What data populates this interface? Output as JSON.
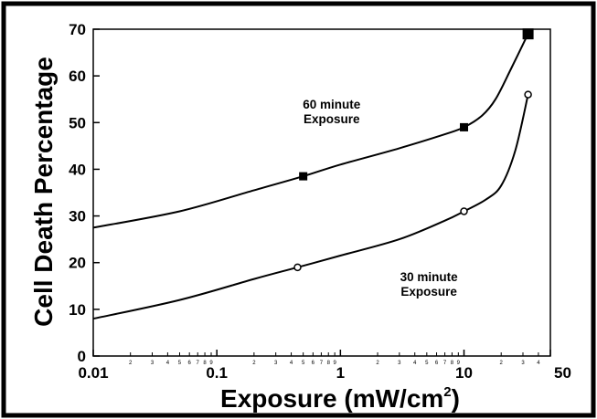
{
  "chart_data": {
    "type": "line",
    "title": "",
    "xlabel": "Exposure (mW/cm",
    "xlabel_sup": "2",
    "xlabel_close": ")",
    "ylabel": "Cell Death Percentage",
    "x_scale": "log",
    "xlim": [
      0.01,
      50
    ],
    "ylim": [
      0,
      70
    ],
    "x_ticks": [
      0.01,
      0.1,
      1,
      10,
      50
    ],
    "x_tick_labels": [
      "0.01",
      "0.1",
      "1",
      "10",
      "50"
    ],
    "y_ticks": [
      0,
      10,
      20,
      30,
      40,
      50,
      60,
      70
    ],
    "y_tick_labels": [
      "0",
      "10",
      "20",
      "30",
      "40",
      "50",
      "60",
      "70"
    ],
    "grid": false,
    "series": [
      {
        "marker": "filled-square",
        "x": [
          0.5,
          10,
          33
        ],
        "y": [
          38.5,
          49,
          69
        ],
        "curve": [
          [
            0.01,
            27.5
          ],
          [
            0.05,
            31
          ],
          [
            0.2,
            35.5
          ],
          [
            0.5,
            38.5
          ],
          [
            1,
            41
          ],
          [
            3,
            44.5
          ],
          [
            7,
            47.5
          ],
          [
            10,
            49
          ],
          [
            14,
            51.5
          ],
          [
            18,
            55
          ],
          [
            24,
            61.5
          ],
          [
            33,
            69
          ]
        ]
      },
      {
        "marker": "open-circle",
        "x": [
          0.45,
          10,
          33
        ],
        "y": [
          19,
          31,
          56
        ],
        "curve": [
          [
            0.01,
            8
          ],
          [
            0.05,
            12
          ],
          [
            0.2,
            16.5
          ],
          [
            0.45,
            19
          ],
          [
            1,
            21.5
          ],
          [
            3,
            25
          ],
          [
            7,
            29
          ],
          [
            10,
            31
          ],
          [
            15,
            33.5
          ],
          [
            20,
            36.5
          ],
          [
            26,
            44
          ],
          [
            33,
            56
          ]
        ]
      }
    ],
    "annotations": [
      {
        "lines": [
          "60 minute",
          "Exposure"
        ],
        "x": 0.85,
        "y": 53
      },
      {
        "lines": [
          "30 minute",
          "Exposure"
        ],
        "x": 5.2,
        "y": 16
      }
    ],
    "minor_tick_labels": [
      {
        "decade": 0.01,
        "labels": [
          "2",
          "3",
          "4",
          "5",
          "6",
          "7",
          "8",
          "9"
        ]
      },
      {
        "decade": 0.1,
        "labels": [
          "2",
          "3",
          "4",
          "5",
          "6",
          "7",
          "8",
          "9"
        ]
      },
      {
        "decade": 1,
        "labels": [
          "2",
          "3",
          "4",
          "5",
          "6",
          "7",
          "8",
          "9"
        ]
      },
      {
        "decade": 10,
        "labels": [
          "2",
          "3",
          "4"
        ]
      }
    ]
  }
}
